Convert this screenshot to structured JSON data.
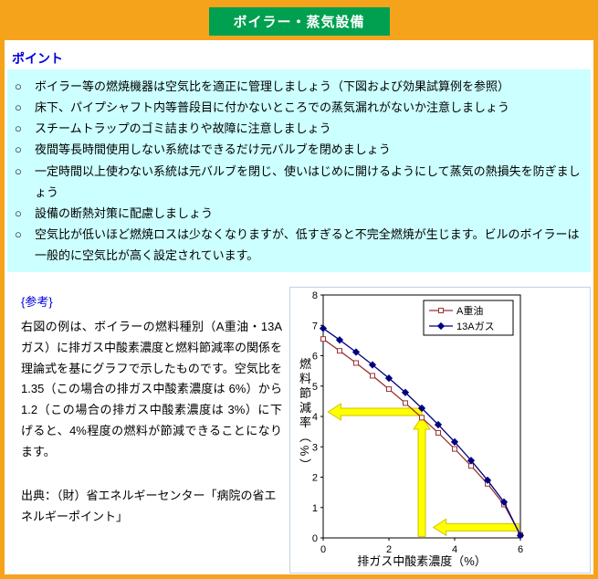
{
  "page": {
    "title": "ボイラー・蒸気設備"
  },
  "points": {
    "heading": "ポイント",
    "bullet": "○",
    "items": [
      "ボイラー等の燃焼機器は空気比を適正に管理しましょう（下図および効果試算例を参照）",
      "床下、パイプシャフト内等普段目に付かないところでの蒸気漏れがないか注意しましょう",
      "スチームトラップのゴミ詰まりや故障に注意しましょう",
      "夜間等長時間使用しない系統はできるだけ元バルブを閉めましょう",
      "一定時間以上使わない系統は元バルブを閉じ、使いはじめに開けるようにして蒸気の熱損失を防ぎましょう",
      "設備の断熱対策に配慮しましょう",
      "空気比が低いほど燃焼ロスは少なくなりますが、低すぎると不完全燃焼が生じます。ビルのボイラーは一般的に空気比が高く設定されています。"
    ]
  },
  "reference": {
    "heading": "{参考}",
    "body": "右図の例は、ボイラーの燃料種別（A重油・13Aガス）に排ガス中酸素濃度と燃料節減率の関係を理論式を基にグラフで示したものです。空気比を 1.35（この場合の排ガス中酸素濃度は 6%）から 1.2（この場合の排ガス中酸素濃度は 3%）に下げると、4%程度の燃料が節減できることになります。",
    "source": "出典：（財）省エネルギーセンター「病院の省エネルギーポイント」"
  },
  "colors": {
    "accent_orange": "#f6a31c",
    "header_green": "#00a050",
    "heading_blue": "#0000e0",
    "points_bg_cyan": "#ccffff",
    "arrow_yellow": "#ffff00"
  },
  "chart_data": {
    "type": "line",
    "title": "",
    "xlabel": "排ガス中酸素濃度（%）",
    "ylabel": "燃料節減率（%）",
    "xlim": [
      0,
      6
    ],
    "ylim": [
      0,
      8
    ],
    "xticks": [
      0,
      2,
      4,
      6
    ],
    "yticks": [
      0,
      1,
      2,
      3,
      4,
      5,
      6,
      7,
      8
    ],
    "grid": false,
    "legend_position": "top-right",
    "x": [
      0,
      0.5,
      1,
      1.5,
      2,
      2.5,
      3,
      3.5,
      4,
      4.5,
      5,
      5.5,
      6
    ],
    "series": [
      {
        "name": "A重油",
        "color": "#993333",
        "marker": "square",
        "values": [
          6.55,
          6.16,
          5.76,
          5.34,
          4.9,
          4.44,
          3.96,
          3.46,
          2.93,
          2.37,
          1.78,
          1.1,
          0.1
        ]
      },
      {
        "name": "13Aガス",
        "color": "#000080",
        "marker": "diamond",
        "values": [
          6.9,
          6.52,
          6.12,
          5.7,
          5.26,
          4.79,
          4.27,
          3.73,
          3.16,
          2.55,
          1.9,
          1.18,
          0.08
        ]
      }
    ],
    "annotations": {
      "arrow_color": "#ffff00",
      "arrow_edge_color": "#cfc300",
      "arrows": [
        {
          "name": "o2-from-6-to-3-arrow",
          "type": "h",
          "y": 0.35,
          "from_x": 5.95,
          "to_x": 3.35
        },
        {
          "name": "up-to-curve-at-3-arrow",
          "type": "v",
          "x": 3.0,
          "from_y": 0.05,
          "to_y": 4.0
        },
        {
          "name": "read-saving-4-arrow",
          "type": "h",
          "y": 4.15,
          "from_x": 3.0,
          "to_x": 0.15
        }
      ]
    }
  }
}
